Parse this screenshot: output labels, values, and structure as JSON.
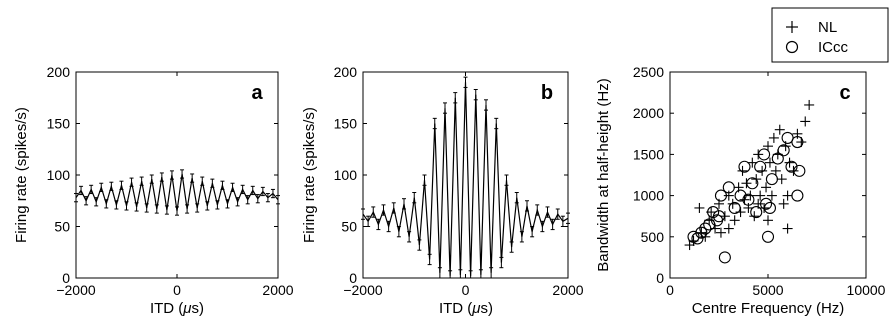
{
  "chart_data": [
    {
      "panel_label": "a",
      "type": "line",
      "xlabel": "ITD (μs)",
      "ylabel": "Firing rate (spikes/s)",
      "xlim": [
        -2000,
        2000
      ],
      "ylim": [
        0,
        200
      ],
      "xticks": [
        "−2000",
        "0",
        "2000"
      ],
      "yticks": [
        "0",
        "50",
        "100",
        "150",
        "200"
      ],
      "series": [
        {
          "x": [
            -2000,
            -1900,
            -1800,
            -1700,
            -1600,
            -1500,
            -1400,
            -1300,
            -1200,
            -1100,
            -1000,
            -900,
            -800,
            -700,
            -600,
            -500,
            -400,
            -300,
            -200,
            -100,
            0,
            100,
            200,
            300,
            400,
            500,
            600,
            700,
            800,
            900,
            1000,
            1100,
            1200,
            1300,
            1400,
            1500,
            1600,
            1700,
            1800,
            1900,
            2000
          ],
          "y": [
            78,
            85,
            75,
            86,
            74,
            88,
            72,
            89,
            71,
            90,
            70,
            93,
            69,
            94,
            68,
            96,
            67,
            98,
            66,
            100,
            65,
            101,
            67,
            97,
            68,
            94,
            70,
            92,
            71,
            90,
            72,
            88,
            74,
            86,
            76,
            85,
            77,
            84,
            78,
            82,
            76
          ],
          "err": 4
        }
      ]
    },
    {
      "panel_label": "b",
      "type": "line",
      "xlabel": "ITD (μs)",
      "ylabel": "Firing rate (spikes/s)",
      "xlim": [
        -2000,
        2000
      ],
      "ylim": [
        0,
        200
      ],
      "xticks": [
        "−2000",
        "0",
        "2000"
      ],
      "yticks": [
        "0",
        "50",
        "100",
        "150",
        "200"
      ],
      "series": [
        {
          "x": [
            -2000,
            -1900,
            -1800,
            -1700,
            -1600,
            -1500,
            -1400,
            -1300,
            -1200,
            -1100,
            -1000,
            -900,
            -800,
            -700,
            -600,
            -500,
            -400,
            -300,
            -200,
            -100,
            0,
            100,
            200,
            300,
            400,
            500,
            600,
            700,
            800,
            900,
            1000,
            1100,
            1200,
            1300,
            1400,
            1500,
            1600,
            1700,
            1800,
            1900,
            2000
          ],
          "y": [
            62,
            55,
            64,
            52,
            66,
            50,
            68,
            45,
            72,
            40,
            78,
            32,
            95,
            18,
            150,
            5,
            165,
            2,
            175,
            3,
            190,
            2,
            178,
            3,
            168,
            5,
            150,
            15,
            95,
            30,
            78,
            40,
            70,
            45,
            66,
            50,
            64,
            52,
            62,
            55,
            58
          ],
          "err": 5
        }
      ]
    },
    {
      "panel_label": "c",
      "type": "scatter",
      "xlabel": "Centre Frequency (Hz)",
      "ylabel": "Bandwidth at half-height (Hz)",
      "xlim": [
        0,
        10000
      ],
      "ylim": [
        0,
        2500
      ],
      "xticks": [
        "0",
        "5000",
        "10000"
      ],
      "yticks": [
        "0",
        "500",
        "1000",
        "1500",
        "2000",
        "2500"
      ],
      "series": [
        {
          "name": "NL",
          "marker": "plus",
          "points": [
            [
              1000,
              400
            ],
            [
              1200,
              450
            ],
            [
              1500,
              850
            ],
            [
              1600,
              550
            ],
            [
              1800,
              500
            ],
            [
              2000,
              700
            ],
            [
              2100,
              800
            ],
            [
              2300,
              600
            ],
            [
              2500,
              900
            ],
            [
              2600,
              550
            ],
            [
              2800,
              750
            ],
            [
              3000,
              600
            ],
            [
              3000,
              1000
            ],
            [
              3200,
              900
            ],
            [
              3300,
              700
            ],
            [
              3500,
              1100
            ],
            [
              3600,
              800
            ],
            [
              3700,
              1300
            ],
            [
              3800,
              950
            ],
            [
              3900,
              1150
            ],
            [
              4000,
              850
            ],
            [
              4100,
              1000
            ],
            [
              4200,
              1400
            ],
            [
              4300,
              750
            ],
            [
              4400,
              1200
            ],
            [
              4500,
              900
            ],
            [
              4500,
              1500
            ],
            [
              4600,
              1000
            ],
            [
              4700,
              1300
            ],
            [
              4800,
              850
            ],
            [
              4900,
              1100
            ],
            [
              5000,
              1600
            ],
            [
              5000,
              700
            ],
            [
              5100,
              1400
            ],
            [
              5200,
              1000
            ],
            [
              5300,
              1700
            ],
            [
              5400,
              1300
            ],
            [
              5500,
              1500
            ],
            [
              5600,
              1800
            ],
            [
              5700,
              1200
            ],
            [
              5800,
              900
            ],
            [
              5900,
              1600
            ],
            [
              6000,
              1000
            ],
            [
              6000,
              600
            ],
            [
              6100,
              1400
            ],
            [
              6300,
              1300
            ],
            [
              6500,
              1750
            ],
            [
              6700,
              1650
            ],
            [
              6900,
              1900
            ],
            [
              7100,
              2100
            ]
          ]
        },
        {
          "name": "ICcc",
          "marker": "circle",
          "points": [
            [
              1200,
              500
            ],
            [
              1400,
              480
            ],
            [
              1600,
              550
            ],
            [
              1800,
              600
            ],
            [
              2000,
              650
            ],
            [
              2200,
              800
            ],
            [
              2400,
              700
            ],
            [
              2500,
              750
            ],
            [
              2600,
              1000
            ],
            [
              2800,
              250
            ],
            [
              3000,
              1100
            ],
            [
              3300,
              850
            ],
            [
              3600,
              1000
            ],
            [
              3800,
              1350
            ],
            [
              4000,
              950
            ],
            [
              4200,
              1150
            ],
            [
              4400,
              800
            ],
            [
              4600,
              1350
            ],
            [
              4800,
              1500
            ],
            [
              4900,
              900
            ],
            [
              5000,
              500
            ],
            [
              5100,
              850
            ],
            [
              5200,
              1200
            ],
            [
              5500,
              1450
            ],
            [
              5800,
              1550
            ],
            [
              6000,
              1700
            ],
            [
              6200,
              1350
            ],
            [
              6500,
              1650
            ],
            [
              6600,
              1300
            ],
            [
              6500,
              1000
            ]
          ]
        }
      ]
    }
  ]
}
